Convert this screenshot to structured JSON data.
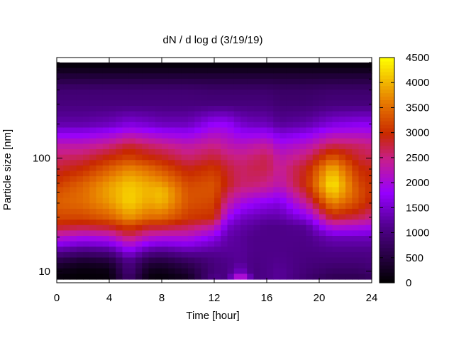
{
  "chart_data": {
    "type": "heatmap",
    "title": "dN / d log d (3/19/19)",
    "xlabel": "Time [hour]",
    "ylabel": "Particle size [nm]",
    "x_range": [
      0,
      24
    ],
    "x_ticks": [
      0,
      4,
      8,
      12,
      16,
      20,
      24
    ],
    "x_tick_labels": [
      "0",
      "4",
      "8",
      "12",
      "16",
      "20",
      "24"
    ],
    "y_scale": "log",
    "y_range": [
      8.5,
      700
    ],
    "y_ticks": [
      10,
      100
    ],
    "y_tick_labels": [
      "10",
      "100"
    ],
    "colorbar": {
      "range": [
        0,
        4500
      ],
      "ticks": [
        0,
        500,
        1000,
        1500,
        2000,
        2500,
        3000,
        3500,
        4000,
        4500
      ],
      "tick_labels": [
        "0",
        "500",
        "1000",
        "1500",
        "2000",
        "2500",
        "3000",
        "3500",
        "4000",
        "4500"
      ],
      "palette": "black-purple-red-orange-yellow"
    },
    "hours": [
      0,
      2,
      4,
      5.5,
      7,
      8,
      10,
      12,
      13,
      14,
      15,
      16,
      17,
      19,
      21,
      23,
      24
    ],
    "size_profile_nm": [
      9,
      10,
      12,
      15,
      20,
      25,
      30,
      40,
      50,
      60,
      80,
      100,
      130,
      200,
      300,
      400,
      550,
      650
    ],
    "z_values": [
      [
        100,
        200,
        500,
        1200,
        2200,
        2900,
        3200,
        3400,
        3300,
        3100,
        2800,
        2600,
        2300,
        1300,
        1000,
        900,
        400,
        100
      ],
      [
        50,
        100,
        300,
        1000,
        2000,
        2800,
        3200,
        3500,
        3500,
        3400,
        3000,
        2700,
        2300,
        1300,
        1000,
        900,
        400,
        100
      ],
      [
        100,
        150,
        400,
        1100,
        2100,
        2900,
        3400,
        3800,
        3900,
        3800,
        3400,
        3000,
        2500,
        1400,
        1000,
        900,
        400,
        100
      ],
      [
        900,
        1000,
        1100,
        1700,
        2600,
        3200,
        3800,
        4200,
        4200,
        4100,
        3700,
        3200,
        2800,
        1600,
        1000,
        900,
        400,
        100
      ],
      [
        150,
        250,
        500,
        1200,
        2200,
        2900,
        3500,
        3900,
        4000,
        3900,
        3500,
        3000,
        2600,
        1500,
        1000,
        900,
        400,
        100
      ],
      [
        100,
        200,
        450,
        1100,
        2100,
        2900,
        3500,
        4000,
        4100,
        3800,
        3300,
        2900,
        2500,
        1400,
        1000,
        900,
        400,
        100
      ],
      [
        300,
        450,
        700,
        1300,
        2100,
        2700,
        3100,
        3300,
        3300,
        3200,
        2900,
        2600,
        2300,
        1400,
        1000,
        900,
        400,
        100
      ],
      [
        1100,
        1000,
        1000,
        1200,
        1700,
        2400,
        3000,
        3200,
        3300,
        3300,
        3100,
        2800,
        2500,
        1800,
        1000,
        850,
        400,
        100
      ],
      [
        1000,
        1050,
        1100,
        1200,
        1300,
        1500,
        1900,
        2400,
        2700,
        2900,
        2800,
        2600,
        2300,
        1800,
        1000,
        850,
        400,
        100
      ],
      [
        2400,
        1500,
        1200,
        1200,
        1200,
        1300,
        1500,
        2000,
        2400,
        2600,
        2600,
        2500,
        2200,
        1500,
        1000,
        850,
        400,
        100
      ],
      [
        1000,
        1000,
        1050,
        1100,
        1100,
        1200,
        1400,
        1800,
        2300,
        2600,
        2700,
        2600,
        2300,
        1400,
        1000,
        850,
        400,
        100
      ],
      [
        1100,
        1100,
        1100,
        1100,
        1100,
        1100,
        1300,
        1700,
        2200,
        2500,
        2700,
        2700,
        2400,
        1400,
        1000,
        850,
        400,
        100
      ],
      [
        1200,
        1200,
        1150,
        1100,
        1100,
        1100,
        1300,
        1600,
        2000,
        2300,
        2400,
        2300,
        2000,
        1200,
        900,
        800,
        400,
        100
      ],
      [
        900,
        950,
        1000,
        1050,
        1100,
        1200,
        1700,
        2400,
        2800,
        3000,
        2900,
        2600,
        2200,
        1300,
        900,
        800,
        400,
        100
      ],
      [
        700,
        800,
        950,
        1100,
        1400,
        2200,
        2900,
        3700,
        4200,
        4400,
        4000,
        3400,
        2700,
        1600,
        1000,
        850,
        400,
        100
      ],
      [
        700,
        800,
        950,
        1100,
        1400,
        2100,
        2700,
        3200,
        3300,
        3200,
        3000,
        2800,
        2600,
        1700,
        1000,
        850,
        400,
        100
      ],
      [
        800,
        900,
        1000,
        1100,
        1400,
        2000,
        2500,
        2900,
        3000,
        3000,
        2900,
        2700,
        2500,
        1700,
        1000,
        850,
        400,
        100
      ]
    ]
  }
}
